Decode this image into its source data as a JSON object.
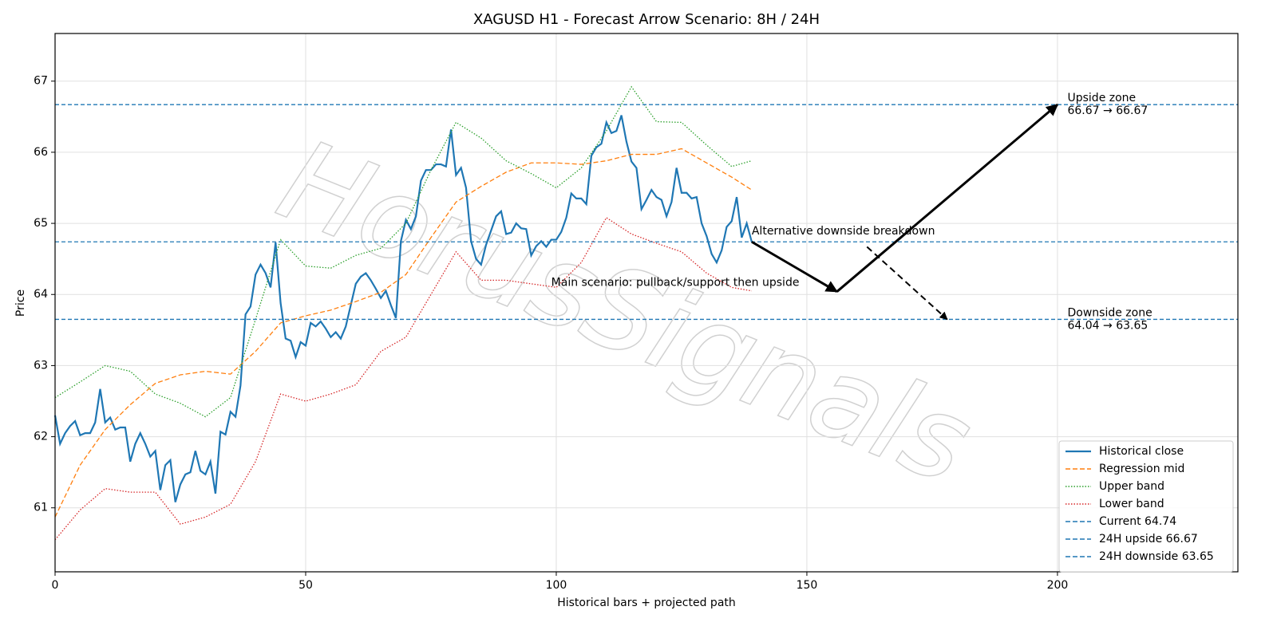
{
  "chart_data": {
    "type": "line",
    "title": "XAGUSD H1 - Forecast Arrow Scenario: 8H / 24H",
    "xlabel": "Historical bars + projected path",
    "ylabel": "Price",
    "watermark": "HorusSignals",
    "xlim": [
      0,
      236
    ],
    "ylim": [
      60.1,
      67.67
    ],
    "xticks": [
      0,
      50,
      100,
      150,
      200
    ],
    "yticks": [
      61,
      62,
      63,
      64,
      65,
      66,
      67
    ],
    "grid": true,
    "legend": "lower right",
    "series": [
      {
        "name": "Historical close",
        "color": "#1f77b4",
        "style": "solid",
        "x": [
          0,
          1,
          2,
          3,
          4,
          5,
          6,
          7,
          8,
          9,
          10,
          11,
          12,
          13,
          14,
          15,
          16,
          17,
          18,
          19,
          20,
          21,
          22,
          23,
          24,
          25,
          26,
          27,
          28,
          29,
          30,
          31,
          32,
          33,
          34,
          35,
          36,
          37,
          38,
          39,
          40,
          41,
          42,
          43,
          44,
          45,
          46,
          47,
          48,
          49,
          50,
          51,
          52,
          53,
          54,
          55,
          56,
          57,
          58,
          59,
          60,
          61,
          62,
          63,
          64,
          65,
          66,
          67,
          68,
          69,
          70,
          71,
          72,
          73,
          74,
          75,
          76,
          77,
          78,
          79,
          80,
          81,
          82,
          83,
          84,
          85,
          86,
          87,
          88,
          89,
          90,
          91,
          92,
          93,
          94,
          95,
          96,
          97,
          98,
          99,
          100,
          101,
          102,
          103,
          104,
          105,
          106,
          107,
          108,
          109,
          110,
          111,
          112,
          113,
          114,
          115,
          116,
          117,
          118,
          119,
          120,
          121,
          122,
          123,
          124,
          125,
          126,
          127,
          128,
          129,
          130,
          131,
          132,
          133,
          134,
          135,
          136,
          137,
          138,
          139
        ],
        "values": [
          62.3,
          61.9,
          62.05,
          62.15,
          62.22,
          62.02,
          62.05,
          62.05,
          62.2,
          62.67,
          62.2,
          62.27,
          62.1,
          62.13,
          62.13,
          61.65,
          61.9,
          62.05,
          61.9,
          61.72,
          61.8,
          61.25,
          61.6,
          61.67,
          61.08,
          61.33,
          61.47,
          61.5,
          61.8,
          61.52,
          61.47,
          61.65,
          61.2,
          62.07,
          62.03,
          62.35,
          62.28,
          62.72,
          63.72,
          63.83,
          64.28,
          64.42,
          64.3,
          64.1,
          64.73,
          63.88,
          63.38,
          63.35,
          63.12,
          63.33,
          63.28,
          63.6,
          63.55,
          63.62,
          63.52,
          63.4,
          63.47,
          63.38,
          63.55,
          63.85,
          64.15,
          64.25,
          64.3,
          64.2,
          64.08,
          63.95,
          64.05,
          63.85,
          63.67,
          64.75,
          65.05,
          64.92,
          65.1,
          65.6,
          65.75,
          65.75,
          65.83,
          65.83,
          65.8,
          66.32,
          65.68,
          65.78,
          65.5,
          64.75,
          64.5,
          64.42,
          64.7,
          64.9,
          65.1,
          65.17,
          64.85,
          64.87,
          65.0,
          64.93,
          64.92,
          64.55,
          64.68,
          64.75,
          64.67,
          64.77,
          64.77,
          64.88,
          65.08,
          65.42,
          65.35,
          65.35,
          65.27,
          65.95,
          66.07,
          66.12,
          66.42,
          66.27,
          66.3,
          66.52,
          66.15,
          65.87,
          65.78,
          65.2,
          65.33,
          65.47,
          65.37,
          65.33,
          65.1,
          65.3,
          65.78,
          65.43,
          65.43,
          65.35,
          65.37,
          65.0,
          64.82,
          64.57,
          64.45,
          64.62,
          64.95,
          65.03,
          65.37,
          64.8,
          65.0,
          64.74
        ]
      },
      {
        "name": "Regression mid",
        "color": "#ff7f0e",
        "style": "dashed",
        "x": [
          0,
          5,
          10,
          15,
          20,
          25,
          30,
          35,
          40,
          45,
          50,
          55,
          60,
          65,
          70,
          75,
          80,
          85,
          90,
          95,
          100,
          105,
          110,
          115,
          120,
          125,
          130,
          135,
          139
        ],
        "values": [
          60.87,
          61.6,
          62.1,
          62.45,
          62.75,
          62.87,
          62.92,
          62.88,
          63.2,
          63.6,
          63.7,
          63.78,
          63.9,
          64.03,
          64.28,
          64.8,
          65.3,
          65.52,
          65.72,
          65.85,
          65.85,
          65.83,
          65.88,
          65.97,
          65.97,
          66.05,
          65.85,
          65.65,
          65.47
        ]
      },
      {
        "name": "Upper band",
        "color": "#2ca02c",
        "style": "dotted",
        "x": [
          0,
          5,
          10,
          15,
          20,
          25,
          30,
          35,
          40,
          45,
          50,
          55,
          60,
          65,
          70,
          75,
          80,
          85,
          90,
          95,
          100,
          105,
          110,
          115,
          120,
          125,
          130,
          135,
          139
        ],
        "values": [
          62.55,
          62.77,
          63.0,
          62.92,
          62.6,
          62.47,
          62.28,
          62.55,
          63.65,
          64.77,
          64.4,
          64.37,
          64.55,
          64.65,
          65.0,
          65.75,
          66.42,
          66.2,
          65.88,
          65.7,
          65.5,
          65.78,
          66.3,
          66.92,
          66.43,
          66.42,
          66.1,
          65.8,
          65.88
        ]
      },
      {
        "name": "Lower band",
        "color": "#d62728",
        "style": "dotted",
        "x": [
          0,
          5,
          10,
          15,
          20,
          25,
          30,
          35,
          40,
          45,
          50,
          55,
          60,
          65,
          70,
          75,
          80,
          85,
          90,
          95,
          100,
          105,
          110,
          115,
          120,
          125,
          130,
          135,
          139
        ],
        "values": [
          60.55,
          60.97,
          61.27,
          61.22,
          61.22,
          60.77,
          60.87,
          61.05,
          61.65,
          62.6,
          62.5,
          62.6,
          62.73,
          63.2,
          63.4,
          64.0,
          64.6,
          64.2,
          64.2,
          64.15,
          64.1,
          64.45,
          65.08,
          64.85,
          64.72,
          64.6,
          64.3,
          64.1,
          64.05
        ]
      }
    ],
    "hlines": [
      {
        "name": "Current 64.74",
        "value": 64.74,
        "color": "#1f77b4"
      },
      {
        "name": "24H upside 66.67",
        "value": 66.67,
        "color": "#1f77b4"
      },
      {
        "name": "24H downside 63.65",
        "value": 63.65,
        "color": "#1f77b4"
      }
    ],
    "arrows": [
      {
        "from": [
          139,
          64.74
        ],
        "to": [
          156,
          64.04
        ],
        "style": "solid"
      },
      {
        "from": [
          156,
          64.04
        ],
        "to": [
          200,
          66.67
        ],
        "style": "solid"
      },
      {
        "from": [
          162,
          64.67
        ],
        "to": [
          178,
          63.65
        ],
        "style": "dashed"
      }
    ],
    "annotations": [
      {
        "lines": [
          "Main scenario: pullback/support then upside"
        ],
        "x": 99,
        "y": 64.1
      },
      {
        "lines": [
          "Alternative downside breakdown"
        ],
        "x": 139,
        "y": 64.82
      },
      {
        "lines": [
          "Upside zone",
          "66.67 → 66.67"
        ],
        "x": 202,
        "y": 66.67
      },
      {
        "lines": [
          "Downside zone",
          "64.04 → 63.65"
        ],
        "x": 202,
        "y": 63.65
      }
    ]
  }
}
